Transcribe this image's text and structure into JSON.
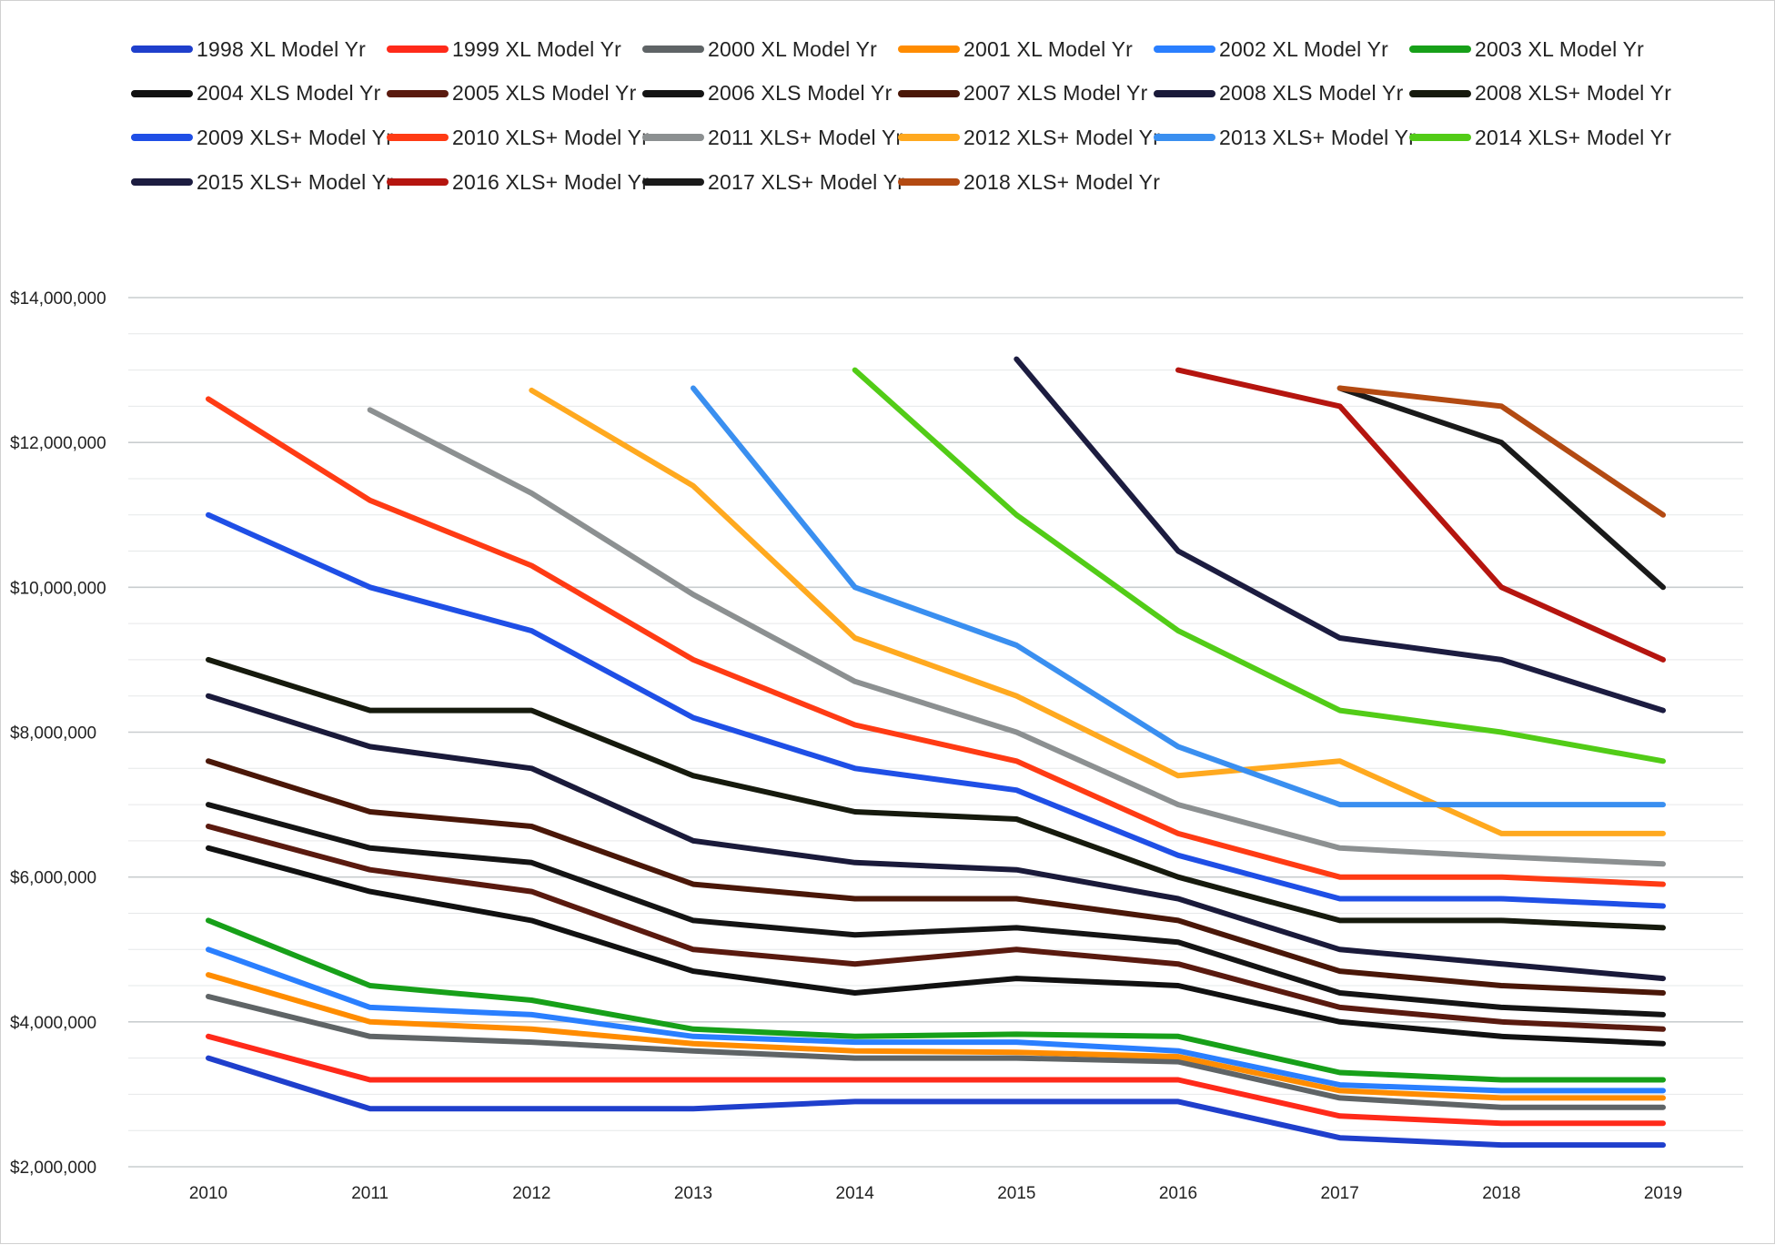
{
  "chart_data": {
    "type": "line",
    "title": "",
    "xlabel": "",
    "ylabel": "",
    "categories": [
      "2010",
      "2011",
      "2012",
      "2013",
      "2014",
      "2015",
      "2016",
      "2017",
      "2018",
      "2019"
    ],
    "y_tick_labels": [
      "$2,000,000",
      "$4,000,000",
      "$6,000,000",
      "$8,000,000",
      "$10,000,000",
      "$12,000,000",
      "$14,000,000"
    ],
    "y_ticks": [
      2000000,
      4000000,
      6000000,
      8000000,
      10000000,
      12000000,
      14000000
    ],
    "ylim": [
      2000000,
      14000000
    ],
    "grid": true,
    "legend_position": "top",
    "series": [
      {
        "name": "1998 XL Model Yr",
        "color": "#1f3fcc",
        "values": [
          3500000,
          2800000,
          2800000,
          2800000,
          2900000,
          2900000,
          2900000,
          2400000,
          2300000,
          2300000
        ]
      },
      {
        "name": "1999 XL Model Yr",
        "color": "#ff2a1a",
        "values": [
          3800000,
          3200000,
          3200000,
          3200000,
          3200000,
          3200000,
          3200000,
          2700000,
          2600000,
          2600000
        ]
      },
      {
        "name": "2000 XL Model Yr",
        "color": "#5f6466",
        "values": [
          4350000,
          3800000,
          3720000,
          3600000,
          3500000,
          3500000,
          3450000,
          2950000,
          2820000,
          2820000
        ]
      },
      {
        "name": "2001 XL Model Yr",
        "color": "#ff8c00",
        "values": [
          4650000,
          4000000,
          3900000,
          3700000,
          3600000,
          3580000,
          3520000,
          3050000,
          2950000,
          2950000
        ]
      },
      {
        "name": "2002 XL Model Yr",
        "color": "#2a7fff",
        "values": [
          5000000,
          4200000,
          4100000,
          3800000,
          3720000,
          3720000,
          3600000,
          3130000,
          3050000,
          3050000
        ]
      },
      {
        "name": "2003 XL Model Yr",
        "color": "#17a019",
        "values": [
          5400000,
          4500000,
          4300000,
          3900000,
          3800000,
          3830000,
          3800000,
          3300000,
          3200000,
          3200000
        ]
      },
      {
        "name": "2004 XLS Model Yr",
        "color": "#111111",
        "values": [
          6400000,
          5800000,
          5400000,
          4700000,
          4400000,
          4600000,
          4500000,
          4000000,
          3800000,
          3700000
        ]
      },
      {
        "name": "2005 XLS Model Yr",
        "color": "#5a1a0f",
        "values": [
          6700000,
          6100000,
          5800000,
          5000000,
          4800000,
          5000000,
          4800000,
          4200000,
          4000000,
          3900000
        ]
      },
      {
        "name": "2006 XLS Model Yr",
        "color": "#141414",
        "values": [
          7000000,
          6400000,
          6200000,
          5400000,
          5200000,
          5300000,
          5100000,
          4400000,
          4200000,
          4100000
        ]
      },
      {
        "name": "2007 XLS Model Yr",
        "color": "#4a1708",
        "values": [
          7600000,
          6900000,
          6700000,
          5900000,
          5700000,
          5700000,
          5400000,
          4700000,
          4500000,
          4400000
        ]
      },
      {
        "name": "2008 XLS Model Yr",
        "color": "#1a1a3a",
        "values": [
          8500000,
          7800000,
          7500000,
          6500000,
          6200000,
          6100000,
          5700000,
          5000000,
          4800000,
          4600000
        ]
      },
      {
        "name": "2008 XLS+ Model Yr",
        "color": "#161a0d",
        "values": [
          9000000,
          8300000,
          8300000,
          7400000,
          6900000,
          6800000,
          6000000,
          5400000,
          5400000,
          5300000
        ]
      },
      {
        "name": "2009 XLS+ Model Yr",
        "color": "#1f4fe6",
        "values": [
          11000000,
          10000000,
          9400000,
          8200000,
          7500000,
          7200000,
          6300000,
          5700000,
          5700000,
          5600000
        ]
      },
      {
        "name": "2010 XLS+ Model Yr",
        "color": "#ff3b14",
        "values": [
          12600000,
          11200000,
          10300000,
          9000000,
          8100000,
          7600000,
          6600000,
          6000000,
          6000000,
          5900000
        ]
      },
      {
        "name": "2011 XLS+ Model Yr",
        "color": "#8c9091",
        "values": [
          null,
          12450000,
          11300000,
          9900000,
          8700000,
          8000000,
          7000000,
          6400000,
          6280000,
          6180000
        ]
      },
      {
        "name": "2012 XLS+ Model Yr",
        "color": "#ffa91f",
        "values": [
          null,
          null,
          12720000,
          11400000,
          9300000,
          8500000,
          7400000,
          7600000,
          6600000,
          6600000
        ]
      },
      {
        "name": "2013 XLS+ Model Yr",
        "color": "#3a8ff0",
        "values": [
          null,
          null,
          null,
          12750000,
          10000000,
          9200000,
          7800000,
          7000000,
          7000000,
          7000000
        ]
      },
      {
        "name": "2014 XLS+ Model Yr",
        "color": "#52cc17",
        "values": [
          null,
          null,
          null,
          null,
          13000000,
          11000000,
          9400000,
          8300000,
          8000000,
          7600000
        ]
      },
      {
        "name": "2015 XLS+ Model Yr",
        "color": "#1c1c40",
        "values": [
          null,
          null,
          null,
          null,
          null,
          13150000,
          10500000,
          9300000,
          9000000,
          8300000
        ]
      },
      {
        "name": "2016 XLS+ Model Yr",
        "color": "#b5150f",
        "values": [
          null,
          null,
          null,
          null,
          null,
          null,
          13000000,
          12500000,
          10000000,
          9000000
        ]
      },
      {
        "name": "2017 XLS+ Model Yr",
        "color": "#1a1a1a",
        "values": [
          null,
          null,
          null,
          null,
          null,
          null,
          null,
          12750000,
          12000000,
          10000000
        ]
      },
      {
        "name": "2018 XLS+ Model Yr",
        "color": "#b34a12",
        "values": [
          null,
          null,
          null,
          null,
          null,
          null,
          null,
          12750000,
          12500000,
          11000000
        ]
      }
    ]
  }
}
